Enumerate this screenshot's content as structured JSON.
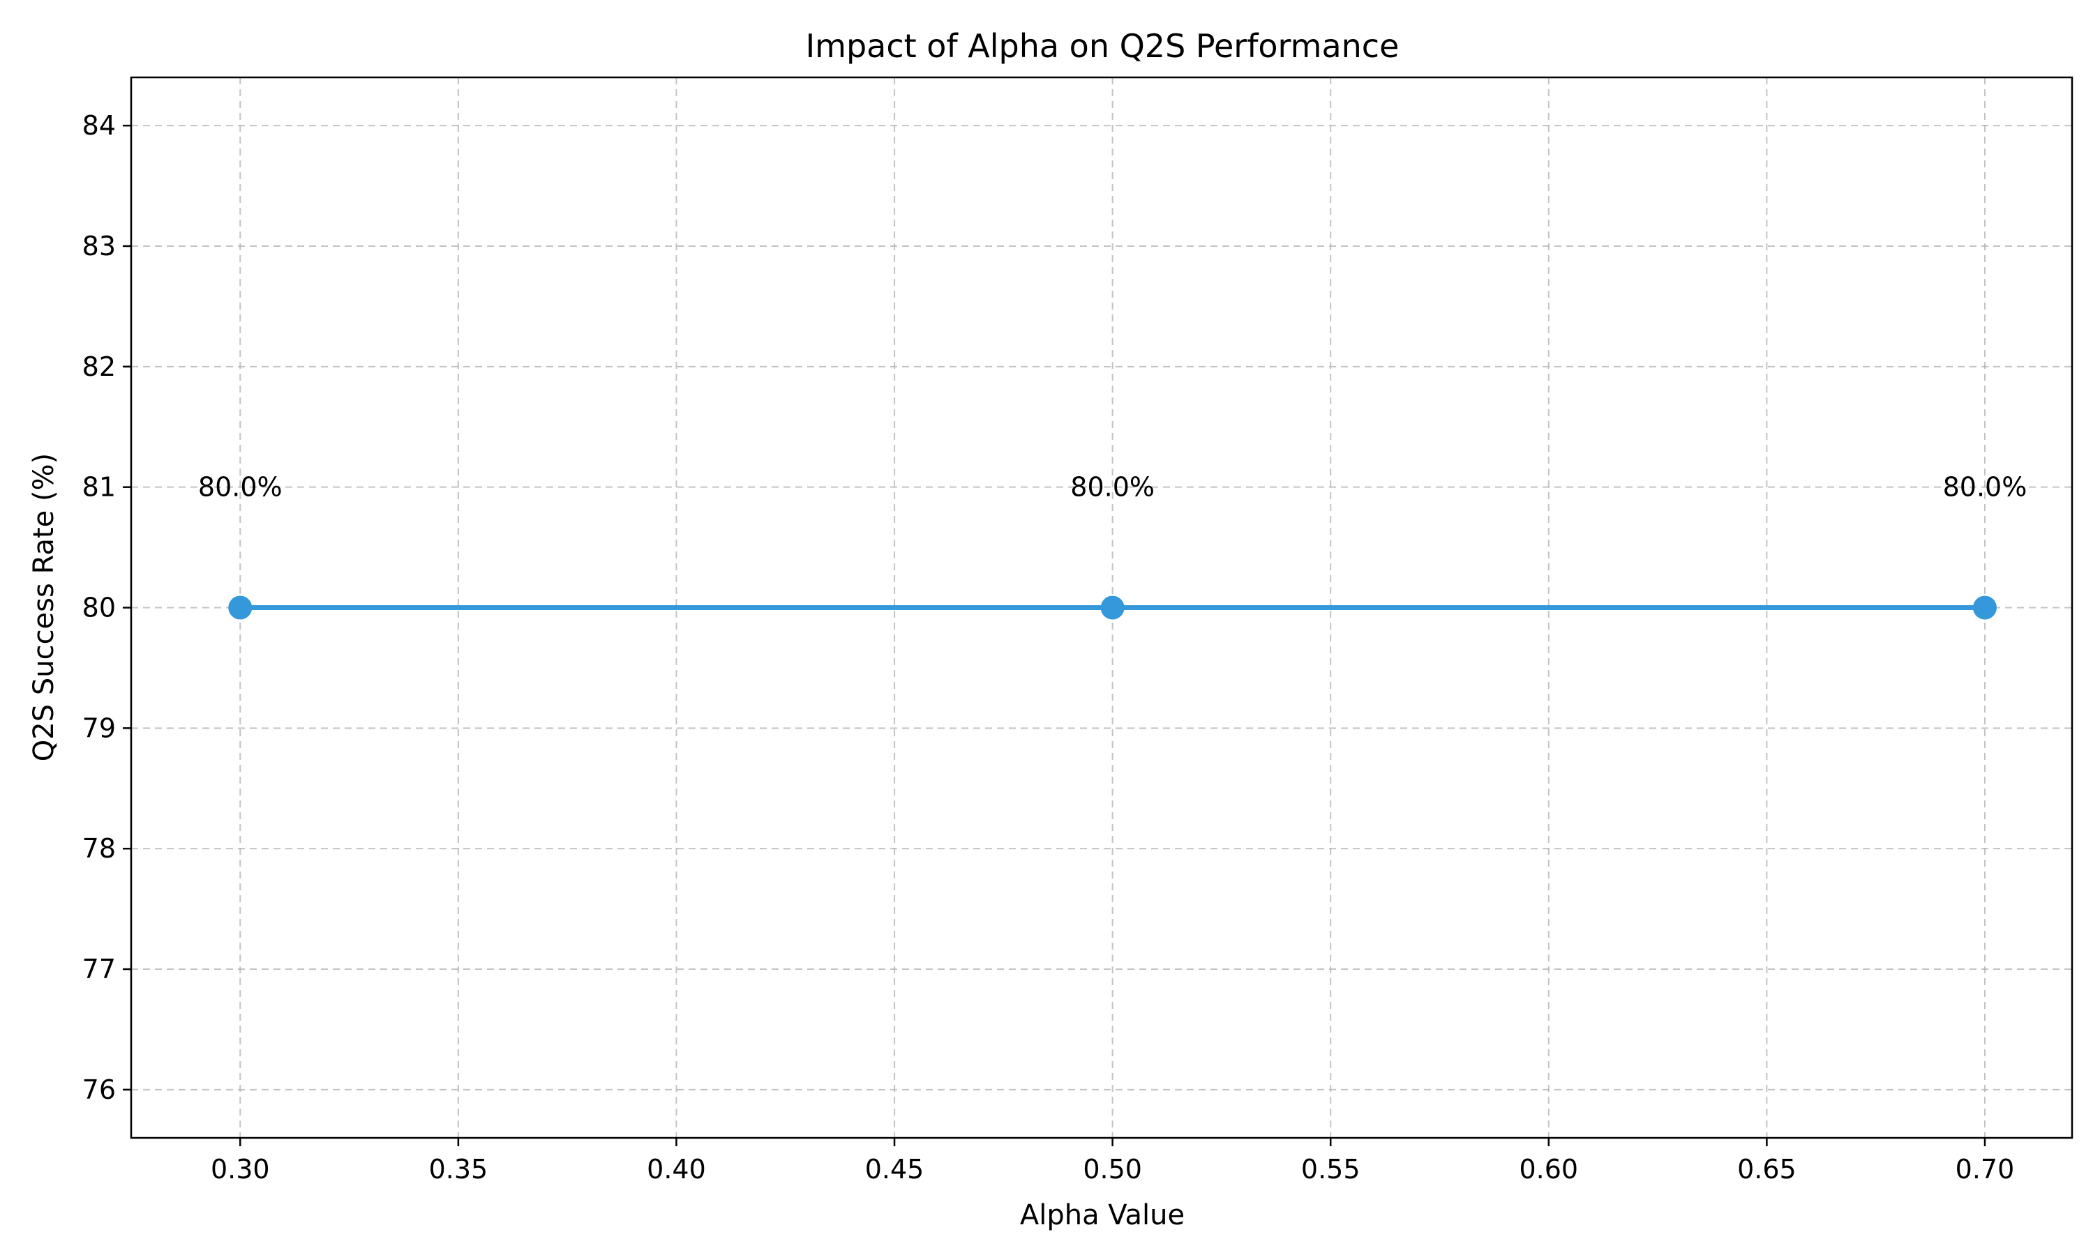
{
  "chart_data": {
    "type": "line",
    "title": "Impact of Alpha on Q2S Performance",
    "xlabel": "Alpha Value",
    "ylabel": "Q2S Success Rate (%)",
    "xlim": [
      0.275,
      0.72
    ],
    "ylim": [
      75.6,
      84.4
    ],
    "xticks": [
      0.3,
      0.35,
      0.4,
      0.45,
      0.5,
      0.55,
      0.6,
      0.65,
      0.7
    ],
    "xtick_labels": [
      "0.30",
      "0.35",
      "0.40",
      "0.45",
      "0.50",
      "0.55",
      "0.60",
      "0.65",
      "0.70"
    ],
    "yticks": [
      76,
      77,
      78,
      79,
      80,
      81,
      82,
      83,
      84
    ],
    "ytick_labels": [
      "76",
      "77",
      "78",
      "79",
      "80",
      "81",
      "82",
      "83",
      "84"
    ],
    "grid": true,
    "series": [
      {
        "x": [
          0.3,
          0.5,
          0.7
        ],
        "values": [
          80.0,
          80.0,
          80.0
        ],
        "data_labels": [
          "80.0%",
          "80.0%",
          "80.0%"
        ],
        "color": "#3498db",
        "marker": "circle"
      }
    ]
  }
}
